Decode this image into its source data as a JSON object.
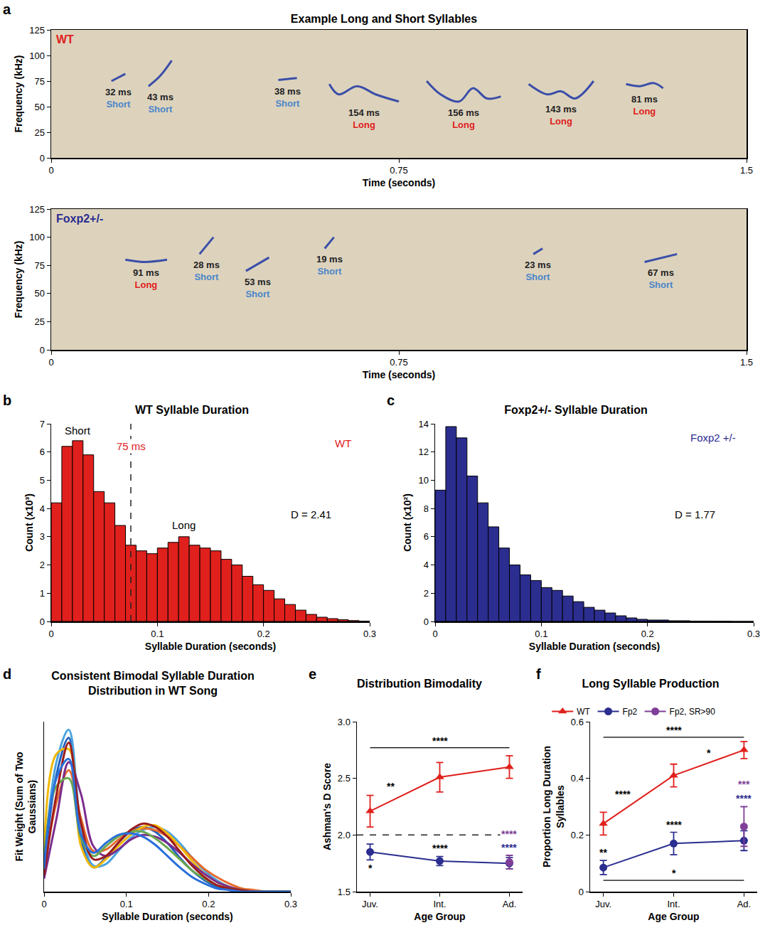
{
  "chart_data": [
    {
      "type": "spectrogram",
      "panel": "a",
      "title": "Example Long and Short Syllables",
      "corner_label": {
        "text": "WT",
        "color": "#e0201c"
      },
      "x_label": "Time (seconds)",
      "y_label": "Frequency (kHz)",
      "xlim": [
        0,
        1.5
      ],
      "xticks": [
        0,
        0.75,
        1.5
      ],
      "ylim": [
        0,
        125
      ],
      "yticks": [
        0,
        25,
        50,
        75,
        100,
        125
      ],
      "color": "#3b4ea8",
      "class_colors": {
        "Short": "#4a86c8",
        "Long": "#e0201c"
      },
      "syllables": [
        {
          "points": [
            [
              0.13,
              75
            ],
            [
              0.16,
              82
            ]
          ],
          "duration": "32 ms",
          "class": "Short"
        },
        {
          "points": [
            [
              0.21,
              70
            ],
            [
              0.235,
              80
            ],
            [
              0.26,
              95
            ]
          ],
          "duration": "43 ms",
          "class": "Short"
        },
        {
          "points": [
            [
              0.49,
              76
            ],
            [
              0.53,
              78
            ]
          ],
          "duration": "38 ms",
          "class": "Short"
        },
        {
          "points": [
            [
              0.6,
              72
            ],
            [
              0.62,
              62
            ],
            [
              0.66,
              70
            ],
            [
              0.7,
              62
            ],
            [
              0.75,
              55
            ]
          ],
          "duration": "154 ms",
          "class": "Long"
        },
        {
          "points": [
            [
              0.81,
              75
            ],
            [
              0.84,
              62
            ],
            [
              0.88,
              55
            ],
            [
              0.91,
              68
            ],
            [
              0.94,
              58
            ],
            [
              0.97,
              60
            ]
          ],
          "duration": "156 ms",
          "class": "Long"
        },
        {
          "points": [
            [
              1.03,
              72
            ],
            [
              1.07,
              62
            ],
            [
              1.1,
              65
            ],
            [
              1.13,
              58
            ],
            [
              1.17,
              75
            ]
          ],
          "duration": "143 ms",
          "class": "Long"
        },
        {
          "points": [
            [
              1.24,
              72
            ],
            [
              1.27,
              70
            ],
            [
              1.3,
              73
            ],
            [
              1.32,
              68
            ]
          ],
          "duration": "81 ms",
          "class": "Long"
        }
      ]
    },
    {
      "type": "spectrogram",
      "corner_label": {
        "text": "Foxp2+/-",
        "color": "#2b2d8f"
      },
      "x_label": "Time (seconds)",
      "y_label": "Frequency (kHz)",
      "xlim": [
        0,
        1.5
      ],
      "xticks": [
        0,
        0.75,
        1.5
      ],
      "ylim": [
        0,
        125
      ],
      "yticks": [
        0,
        25,
        50,
        75,
        100,
        125
      ],
      "color": "#3b4ea8",
      "class_colors": {
        "Short": "#4a86c8",
        "Long": "#e0201c"
      },
      "syllables": [
        {
          "points": [
            [
              0.16,
              80
            ],
            [
              0.2,
              78
            ],
            [
              0.25,
              80
            ]
          ],
          "duration": "91 ms",
          "class": "Long"
        },
        {
          "points": [
            [
              0.32,
              85
            ],
            [
              0.35,
              100
            ]
          ],
          "duration": "28 ms",
          "class": "Short"
        },
        {
          "points": [
            [
              0.42,
              70
            ],
            [
              0.47,
              82
            ]
          ],
          "duration": "53 ms",
          "class": "Short"
        },
        {
          "points": [
            [
              0.59,
              90
            ],
            [
              0.61,
              100
            ]
          ],
          "duration": "19 ms",
          "class": "Short"
        },
        {
          "points": [
            [
              1.04,
              85
            ],
            [
              1.06,
              90
            ]
          ],
          "duration": "23 ms",
          "class": "Short"
        },
        {
          "points": [
            [
              1.28,
              78
            ],
            [
              1.35,
              85
            ]
          ],
          "duration": "67 ms",
          "class": "Short"
        }
      ]
    },
    {
      "type": "histogram",
      "panel": "b",
      "title": "WT Syllable Duration",
      "x_label": "Syllable Duration (seconds)",
      "y_label": "Count (x10³)",
      "xlim": [
        0,
        0.3
      ],
      "xticks": [
        0,
        0.1,
        0.2,
        0.3
      ],
      "ylim": [
        0,
        7
      ],
      "yticks": [
        0,
        1,
        2,
        3,
        4,
        5,
        6,
        7
      ],
      "color": "#e0201c",
      "bins": [
        0,
        0.01,
        0.02,
        0.03,
        0.04,
        0.05,
        0.06,
        0.07,
        0.08,
        0.09,
        0.1,
        0.11,
        0.12,
        0.13,
        0.14,
        0.15,
        0.16,
        0.17,
        0.18,
        0.19,
        0.2,
        0.21,
        0.22,
        0.23,
        0.24,
        0.25,
        0.26,
        0.27,
        0.28,
        0.29,
        0.3
      ],
      "values": [
        4.2,
        6.2,
        6.4,
        5.9,
        4.6,
        4.2,
        3.4,
        2.7,
        2.5,
        2.4,
        2.6,
        2.8,
        3.0,
        2.7,
        2.6,
        2.5,
        2.2,
        2.0,
        1.6,
        1.3,
        1.1,
        0.8,
        0.6,
        0.4,
        0.25,
        0.15,
        0.1,
        0.06,
        0.03,
        0.01
      ],
      "vline": 0.075,
      "annotations": [
        {
          "text": "Short",
          "x": 0.025,
          "y": 6.75
        },
        {
          "text": "75 ms",
          "x": 0.075,
          "y": 6.2,
          "color": "#e0201c"
        },
        {
          "text": "Long",
          "x": 0.125,
          "y": 3.4
        },
        {
          "text": "D = 2.41",
          "x": 0.245,
          "y": 3.8
        },
        {
          "text": "WT",
          "x": 0.275,
          "y": 6.3,
          "color": "#e0201c"
        }
      ]
    },
    {
      "type": "histogram",
      "panel": "c",
      "title": "Foxp2+/- Syllable Duration",
      "x_label": "Syllable Duration (seconds)",
      "y_label": "Count (x10²)",
      "xlim": [
        0,
        0.3
      ],
      "xticks": [
        0,
        0.1,
        0.2,
        0.3
      ],
      "ylim": [
        0,
        14
      ],
      "yticks": [
        0,
        2,
        4,
        6,
        8,
        10,
        12,
        14
      ],
      "color": "#2b2d8f",
      "bins": [
        0,
        0.01,
        0.02,
        0.03,
        0.04,
        0.05,
        0.06,
        0.07,
        0.08,
        0.09,
        0.1,
        0.11,
        0.12,
        0.13,
        0.14,
        0.15,
        0.16,
        0.17,
        0.18,
        0.19,
        0.2,
        0.21,
        0.22,
        0.23,
        0.24,
        0.25,
        0.26,
        0.27,
        0.28,
        0.29,
        0.3
      ],
      "values": [
        9.3,
        13.8,
        13.0,
        10.3,
        8.4,
        6.7,
        5.2,
        4.0,
        3.3,
        2.9,
        2.4,
        2.2,
        1.8,
        1.4,
        1.0,
        0.8,
        0.6,
        0.4,
        0.25,
        0.15,
        0.1,
        0.1,
        0.05,
        0.05,
        0.02,
        0.02,
        0.01,
        0.01,
        0,
        0
      ],
      "annotations": [
        {
          "text": "Foxp2 +/-",
          "x": 0.262,
          "y": 13.0,
          "color": "#2b2d8f"
        },
        {
          "text": "D = 1.77",
          "x": 0.245,
          "y": 7.6
        }
      ]
    },
    {
      "type": "line",
      "panel": "d",
      "title": "Consistent Bimodal Syllable Duration Distribution in WT Song",
      "x_label": "Syllable Duration (seconds)",
      "y_label": "Fit Weight (Sum of Two Gaussians)",
      "xlim": [
        0,
        0.3
      ],
      "xticks": [
        0,
        0.1,
        0.2,
        0.3
      ],
      "ylim": [
        0,
        1.05
      ],
      "yticks": [],
      "tick_labels": "x",
      "x": [
        0,
        0.015,
        0.03,
        0.045,
        0.06,
        0.075,
        0.09,
        0.105,
        0.12,
        0.135,
        0.15,
        0.165,
        0.18,
        0.195,
        0.21,
        0.225,
        0.24,
        0.255,
        0.27,
        0.285,
        0.3
      ],
      "series": [
        {
          "color": "#1f5fbf",
          "values": [
            0.11,
            0.72,
            0.95,
            0.32,
            0.15,
            0.21,
            0.3,
            0.37,
            0.4,
            0.37,
            0.3,
            0.21,
            0.13,
            0.07,
            0.03,
            0.01,
            0,
            0,
            0,
            0,
            0
          ]
        },
        {
          "color": "#4aa3df",
          "values": [
            0.15,
            0.8,
            1.0,
            0.4,
            0.16,
            0.17,
            0.25,
            0.33,
            0.38,
            0.4,
            0.37,
            0.3,
            0.21,
            0.13,
            0.07,
            0.03,
            0.01,
            0,
            0,
            0,
            0
          ]
        },
        {
          "color": "#e66b2e",
          "values": [
            0.12,
            0.55,
            0.75,
            0.45,
            0.25,
            0.26,
            0.32,
            0.37,
            0.39,
            0.38,
            0.34,
            0.28,
            0.21,
            0.14,
            0.09,
            0.05,
            0.02,
            0.01,
            0,
            0,
            0
          ]
        },
        {
          "color": "#f2b705",
          "values": [
            0.2,
            0.85,
            0.88,
            0.28,
            0.15,
            0.2,
            0.28,
            0.35,
            0.4,
            0.41,
            0.36,
            0.28,
            0.19,
            0.11,
            0.06,
            0.03,
            0.01,
            0,
            0,
            0,
            0
          ]
        },
        {
          "color": "#7b2d8e",
          "values": [
            0.08,
            0.45,
            0.8,
            0.6,
            0.28,
            0.22,
            0.26,
            0.32,
            0.35,
            0.34,
            0.3,
            0.24,
            0.17,
            0.11,
            0.06,
            0.03,
            0.01,
            0,
            0,
            0,
            0
          ]
        },
        {
          "color": "#6aa84f",
          "values": [
            0.18,
            0.65,
            0.7,
            0.33,
            0.22,
            0.28,
            0.34,
            0.37,
            0.37,
            0.33,
            0.27,
            0.2,
            0.13,
            0.08,
            0.04,
            0.02,
            0.01,
            0,
            0,
            0,
            0
          ]
        },
        {
          "color": "#9b1c1c",
          "values": [
            0.1,
            0.6,
            0.92,
            0.42,
            0.2,
            0.22,
            0.3,
            0.38,
            0.42,
            0.4,
            0.34,
            0.25,
            0.16,
            0.09,
            0.04,
            0.02,
            0.01,
            0,
            0,
            0,
            0
          ]
        },
        {
          "color": "#2a6fdb",
          "values": [
            0.14,
            0.7,
            0.82,
            0.35,
            0.24,
            0.3,
            0.35,
            0.36,
            0.34,
            0.29,
            0.22,
            0.15,
            0.09,
            0.05,
            0.02,
            0.01,
            0,
            0,
            0,
            0,
            0
          ]
        }
      ]
    },
    {
      "type": "line",
      "panel": "e",
      "title": "Distribution Bimodality",
      "x_label": "Age Group",
      "y_label": "Ashman's D Score",
      "categories": [
        "Juv.",
        "Int.",
        "Ad."
      ],
      "ylim": [
        1.5,
        3.0
      ],
      "yticks": [
        1.5,
        {
          "value": 2,
          "label": "2.0"
        },
        2.5,
        {
          "value": 3,
          "label": "3.0"
        }
      ],
      "hline": 2,
      "series": [
        {
          "color": "#e0201c",
          "marker": "triangle-up",
          "line_style": "solid",
          "values": [
            2.21,
            2.51,
            2.6
          ],
          "errors": [
            0.14,
            0.13,
            0.1
          ]
        },
        {
          "color": "#2b2d8f",
          "marker": "circle",
          "line_style": "solid",
          "values": [
            1.85,
            1.77,
            1.75
          ],
          "errors": [
            0.07,
            0.04,
            0.05
          ]
        },
        {
          "color": "#7f3f98",
          "marker": "circle",
          "line_style": "solid",
          "values": [
            null,
            null,
            1.76
          ],
          "errors": [
            null,
            null,
            0.06
          ]
        }
      ],
      "brackets": [
        {
          "from": 0,
          "to": 2,
          "y": 2.77,
          "text": "****"
        }
      ],
      "annotations": [
        {
          "text": "**",
          "x": 0.3,
          "y": 2.43,
          "color": "#000000"
        },
        {
          "text": "*",
          "x": 0,
          "y": 1.71,
          "color": "#000000"
        },
        {
          "text": "****",
          "x": 1,
          "y": 1.88,
          "color": "#000000"
        },
        {
          "text": "****",
          "x": 2,
          "y": 1.89,
          "color": "#2b2d8f"
        },
        {
          "text": "****",
          "x": 2,
          "y": 2.01,
          "color": "#7f3f98"
        }
      ]
    },
    {
      "type": "line",
      "panel": "f",
      "title": "Long Syllable Production",
      "x_label": "Age Group",
      "y_label": "Proportion Long Duration Syllables",
      "categories": [
        "Juv.",
        "Int.",
        "Ad."
      ],
      "ylim": [
        0,
        0.6
      ],
      "yticks": [
        0,
        0.2,
        0.4,
        0.6
      ],
      "legend": "top",
      "series": [
        {
          "name": "WT",
          "color": "#e0201c",
          "marker": "triangle-up",
          "line_style": "solid",
          "values": [
            0.24,
            0.41,
            0.5
          ],
          "errors": [
            0.04,
            0.04,
            0.03
          ]
        },
        {
          "name": "Fp2",
          "color": "#2b2d8f",
          "marker": "circle",
          "line_style": "solid",
          "values": [
            0.085,
            0.17,
            0.18
          ],
          "errors": [
            0.025,
            0.04,
            0.035
          ]
        },
        {
          "name": "Fp2, SR>90",
          "color": "#7f3f98",
          "marker": "circle",
          "line_style": "solid",
          "values": [
            null,
            null,
            0.23
          ],
          "errors": [
            null,
            null,
            0.07
          ]
        }
      ],
      "brackets": [
        {
          "from": 0,
          "to": 2,
          "y": 0.545,
          "text": "****"
        },
        {
          "from": 0,
          "to": 2,
          "y": 0.04,
          "text": "*"
        }
      ],
      "annotations": [
        {
          "text": "****",
          "x": 0.275,
          "y": 0.345,
          "color": "#000000"
        },
        {
          "text": "*",
          "x": 1.5,
          "y": 0.49,
          "color": "#000000"
        },
        {
          "text": "**",
          "x": 0,
          "y": 0.137,
          "color": "#000000"
        },
        {
          "text": "****",
          "x": 1,
          "y": 0.237,
          "color": "#000000"
        },
        {
          "text": "****",
          "x": 2,
          "y": 0.33,
          "color": "#2b2d8f"
        },
        {
          "text": "***",
          "x": 2,
          "y": 0.38,
          "color": "#7f3f98"
        }
      ]
    }
  ]
}
